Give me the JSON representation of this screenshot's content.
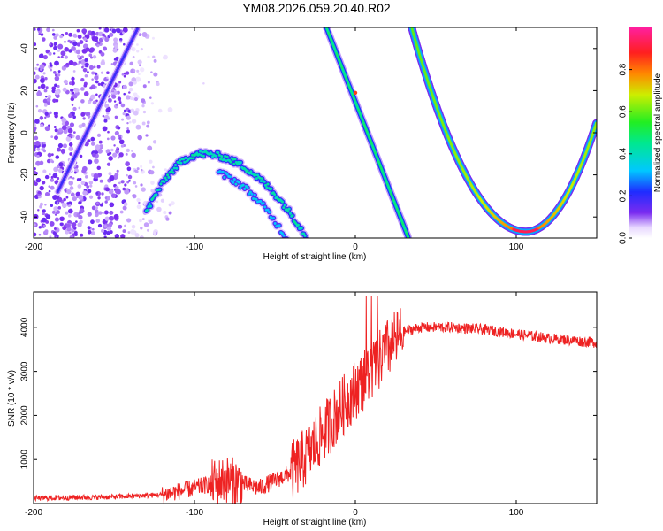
{
  "figure": {
    "title": "YM08.2026.059.20.40.R02"
  },
  "chart_data": [
    {
      "type": "heatmap",
      "name": "spectrogram",
      "xlabel": "Height of straight line (km)",
      "ylabel": "Frequency (Hz)",
      "xlim": [
        -200,
        150
      ],
      "ylim": [
        -50,
        50
      ],
      "xticks": [
        -200,
        -100,
        0,
        100
      ],
      "yticks": [
        -40,
        -20,
        0,
        20,
        40
      ],
      "colorbar": {
        "label": "Normalized spectral amplitude",
        "range": [
          0,
          1
        ],
        "ticks": [
          0.0,
          0.2,
          0.4,
          0.6,
          0.8
        ]
      },
      "features": [
        {
          "name": "left-diagonal-trace",
          "points": [
            [
              -185,
              -28
            ],
            [
              -135,
              50
            ]
          ],
          "peak": 0.2
        },
        {
          "name": "arc-trace",
          "vertex": [
            -95,
            -10
          ],
          "ends": [
            [
              -130,
              -38
            ],
            [
              -30,
              -50
            ]
          ],
          "peak": 0.45
        },
        {
          "name": "steep-diagonal-trace",
          "points": [
            [
              -18,
              50
            ],
            [
              33,
              -50
            ]
          ],
          "peak": 0.5
        },
        {
          "name": "parabola-trace",
          "vertex": [
            106,
            -47
          ],
          "ends": [
            [
              35,
              50
            ],
            [
              150,
              5
            ]
          ],
          "peak": 0.95
        }
      ]
    },
    {
      "type": "line",
      "name": "snr",
      "xlabel": "Height of straight line (km)",
      "ylabel": "SNR (10 * v/v)",
      "xlim": [
        -200,
        150
      ],
      "ylim": [
        0,
        4800
      ],
      "xticks": [
        -200,
        -100,
        0,
        100
      ],
      "yticks": [
        1000,
        2000,
        3000,
        4000
      ],
      "color": "#ee2222",
      "envelope": {
        "x": [
          -200,
          -150,
          -120,
          -100,
          -80,
          -60,
          -40,
          -30,
          -20,
          -10,
          0,
          10,
          20,
          30,
          40,
          60,
          80,
          100,
          120,
          150
        ],
        "y": [
          120,
          150,
          200,
          350,
          550,
          350,
          700,
          1100,
          1600,
          2100,
          2600,
          3000,
          3500,
          3900,
          4000,
          4000,
          3950,
          3850,
          3750,
          3650
        ]
      }
    }
  ]
}
